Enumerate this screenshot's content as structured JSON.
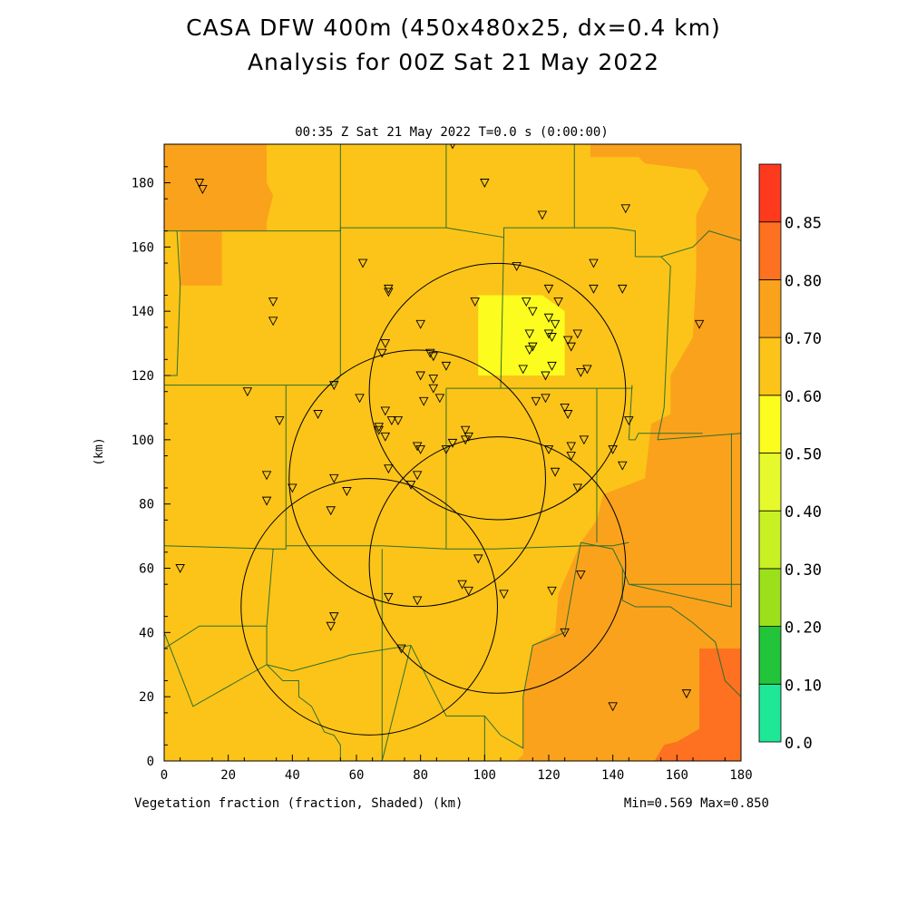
{
  "header": {
    "title_line1": "CASA DFW 400m (450x480x25, dx=0.4 km)",
    "title_line2": "Analysis for 00Z Sat 21 May 2022"
  },
  "chart_data": {
    "type": "heatmap",
    "subtitle": "00:35 Z Sat 21 May 2022    T=0.0 s (0:00:00)",
    "xlabel": "Vegetation fraction (fraction, Shaded)  (km)",
    "ylabel": "(km)",
    "stats": "Min=0.569 Max=0.850",
    "xlim": [
      0,
      180
    ],
    "ylim": [
      0,
      192
    ],
    "x_ticks": [
      0,
      20,
      40,
      60,
      80,
      100,
      120,
      140,
      160,
      180
    ],
    "y_ticks": [
      0,
      20,
      40,
      60,
      80,
      100,
      120,
      140,
      160,
      180
    ],
    "colorbar": {
      "levels": [
        0.0,
        0.1,
        0.2,
        0.3,
        0.4,
        0.5,
        0.6,
        0.7,
        0.8,
        0.85
      ],
      "labels": [
        "0.0",
        "0.10",
        "0.20",
        "0.30",
        "0.40",
        "0.50",
        "0.60",
        "0.70",
        "0.80",
        "0.85"
      ],
      "colors": [
        "#1ee896",
        "#22c43a",
        "#9ce01c",
        "#c8f023",
        "#e6f92c",
        "#fcfc1e",
        "#fcc418",
        "#fba21c",
        "#fd7120",
        "#fd3a1e"
      ]
    },
    "regions": [
      {
        "value": 0.65,
        "polygon": [
          [
            0,
            0
          ],
          [
            180,
            0
          ],
          [
            180,
            192
          ],
          [
            0,
            192
          ]
        ]
      },
      {
        "value": 0.75,
        "polygon": [
          [
            0,
            192
          ],
          [
            32,
            192
          ],
          [
            32,
            180
          ],
          [
            34,
            176
          ],
          [
            32,
            168
          ],
          [
            32,
            165
          ],
          [
            18,
            165
          ],
          [
            18,
            148
          ],
          [
            5,
            148
          ],
          [
            5,
            165
          ],
          [
            0,
            165
          ]
        ]
      },
      {
        "value": 0.75,
        "polygon": [
          [
            133,
            192
          ],
          [
            180,
            192
          ],
          [
            180,
            0
          ],
          [
            110,
            0
          ],
          [
            112,
            2
          ],
          [
            112,
            20
          ],
          [
            115,
            36
          ],
          [
            122,
            40
          ],
          [
            123,
            52
          ],
          [
            130,
            68
          ],
          [
            135,
            75
          ],
          [
            137,
            83
          ],
          [
            150,
            88
          ],
          [
            152,
            105
          ],
          [
            158,
            108
          ],
          [
            158,
            120
          ],
          [
            165,
            132
          ],
          [
            166,
            152
          ],
          [
            166,
            170
          ],
          [
            170,
            178
          ],
          [
            166,
            184
          ],
          [
            150,
            186
          ],
          [
            148,
            188
          ],
          [
            133,
            188
          ]
        ]
      },
      {
        "value": 0.82,
        "polygon": [
          [
            153,
            0
          ],
          [
            180,
            0
          ],
          [
            180,
            35
          ],
          [
            167,
            35
          ],
          [
            167,
            10
          ],
          [
            160,
            6
          ],
          [
            156,
            5
          ]
        ]
      },
      {
        "value": 0.57,
        "polygon": [
          [
            98,
            145
          ],
          [
            118,
            145
          ],
          [
            125,
            140
          ],
          [
            125,
            120
          ],
          [
            98,
            120
          ]
        ]
      }
    ],
    "stations_xy": [
      [
        11,
        180
      ],
      [
        12,
        178
      ],
      [
        90,
        192
      ],
      [
        100,
        180
      ],
      [
        118,
        170
      ],
      [
        144,
        172
      ],
      [
        62,
        155
      ],
      [
        70,
        147
      ],
      [
        70,
        146
      ],
      [
        34,
        143
      ],
      [
        34,
        137
      ],
      [
        110,
        154
      ],
      [
        134,
        155
      ],
      [
        120,
        147
      ],
      [
        134,
        147
      ],
      [
        143,
        147
      ],
      [
        97,
        143
      ],
      [
        113,
        143
      ],
      [
        123,
        143
      ],
      [
        115,
        140
      ],
      [
        120,
        138
      ],
      [
        114,
        133
      ],
      [
        122,
        136
      ],
      [
        120,
        133
      ],
      [
        121,
        132
      ],
      [
        115,
        129
      ],
      [
        114,
        128
      ],
      [
        126,
        131
      ],
      [
        129,
        133
      ],
      [
        127,
        129
      ],
      [
        80,
        136
      ],
      [
        69,
        130
      ],
      [
        68,
        127
      ],
      [
        83,
        127
      ],
      [
        84,
        126
      ],
      [
        80,
        120
      ],
      [
        88,
        123
      ],
      [
        112,
        122
      ],
      [
        121,
        123
      ],
      [
        119,
        120
      ],
      [
        132,
        122
      ],
      [
        130,
        121
      ],
      [
        26,
        115
      ],
      [
        53,
        117
      ],
      [
        61,
        113
      ],
      [
        84,
        119
      ],
      [
        84,
        116
      ],
      [
        81,
        112
      ],
      [
        86,
        113
      ],
      [
        116,
        112
      ],
      [
        119,
        113
      ],
      [
        125,
        110
      ],
      [
        126,
        108
      ],
      [
        145,
        106
      ],
      [
        36,
        106
      ],
      [
        48,
        108
      ],
      [
        69,
        109
      ],
      [
        67,
        104
      ],
      [
        67,
        103
      ],
      [
        73,
        106
      ],
      [
        71,
        106
      ],
      [
        69,
        101
      ],
      [
        79,
        98
      ],
      [
        80,
        97
      ],
      [
        88,
        97
      ],
      [
        90,
        99
      ],
      [
        94,
        103
      ],
      [
        95,
        101
      ],
      [
        94,
        100
      ],
      [
        120,
        97
      ],
      [
        127,
        98
      ],
      [
        131,
        100
      ],
      [
        140,
        97
      ],
      [
        127,
        95
      ],
      [
        143,
        92
      ],
      [
        70,
        91
      ],
      [
        32,
        89
      ],
      [
        79,
        89
      ],
      [
        122,
        90
      ],
      [
        53,
        88
      ],
      [
        57,
        84
      ],
      [
        32,
        81
      ],
      [
        40,
        85
      ],
      [
        77,
        86
      ],
      [
        129,
        85
      ],
      [
        52,
        78
      ],
      [
        5,
        60
      ],
      [
        98,
        63
      ],
      [
        130,
        58
      ],
      [
        93,
        55
      ],
      [
        95,
        53
      ],
      [
        106,
        52
      ],
      [
        121,
        53
      ],
      [
        70,
        51
      ],
      [
        79,
        50
      ],
      [
        53,
        45
      ],
      [
        52,
        42
      ],
      [
        125,
        40
      ],
      [
        74,
        35
      ],
      [
        140,
        17
      ],
      [
        163,
        21
      ],
      [
        167,
        136
      ]
    ],
    "range_rings": [
      {
        "cx": 64,
        "cy": 48,
        "r": 40
      },
      {
        "cx": 79,
        "cy": 88,
        "r": 40
      },
      {
        "cx": 104,
        "cy": 115,
        "r": 40
      },
      {
        "cx": 104,
        "cy": 61,
        "r": 40
      }
    ],
    "county_lines": [
      [
        [
          0,
          165
        ],
        [
          55,
          165
        ],
        [
          55,
          192
        ]
      ],
      [
        [
          55,
          166
        ],
        [
          88,
          166
        ],
        [
          88,
          192
        ]
      ],
      [
        [
          55,
          166
        ],
        [
          55,
          120
        ]
      ],
      [
        [
          4,
          165
        ],
        [
          5,
          148
        ],
        [
          4,
          120
        ],
        [
          0,
          120
        ]
      ],
      [
        [
          0,
          117
        ],
        [
          38,
          117
        ],
        [
          53,
          117
        ],
        [
          55,
          120
        ]
      ],
      [
        [
          88,
          166
        ],
        [
          106,
          163
        ],
        [
          106,
          166
        ],
        [
          128,
          166
        ],
        [
          128,
          192
        ]
      ],
      [
        [
          128,
          166
        ],
        [
          140,
          166
        ],
        [
          147,
          165
        ],
        [
          147,
          157
        ]
      ],
      [
        [
          106,
          163
        ],
        [
          105,
          116
        ],
        [
          135,
          116
        ],
        [
          146,
          116
        ],
        [
          146,
          117
        ],
        [
          145,
          100
        ]
      ],
      [
        [
          145,
          100
        ],
        [
          146,
          100
        ],
        [
          147,
          100
        ],
        [
          148,
          102
        ],
        [
          168,
          102
        ]
      ],
      [
        [
          147,
          157
        ],
        [
          155,
          157
        ],
        [
          165,
          160
        ],
        [
          170,
          165
        ],
        [
          180,
          162
        ]
      ],
      [
        [
          155,
          157
        ],
        [
          158,
          154
        ],
        [
          156,
          110
        ],
        [
          154,
          100
        ],
        [
          180,
          102
        ]
      ],
      [
        [
          38,
          117
        ],
        [
          38,
          67
        ],
        [
          38,
          66
        ],
        [
          34,
          66
        ]
      ],
      [
        [
          0,
          67
        ],
        [
          34,
          66
        ],
        [
          32,
          42
        ],
        [
          11,
          42
        ],
        [
          0,
          35
        ]
      ],
      [
        [
          38,
          67
        ],
        [
          50,
          67
        ],
        [
          68,
          67
        ],
        [
          88,
          66
        ],
        [
          103,
          66
        ],
        [
          131,
          67
        ],
        [
          140,
          67
        ],
        [
          145,
          68
        ]
      ],
      [
        [
          88,
          116
        ],
        [
          88,
          66
        ]
      ],
      [
        [
          88,
          116
        ],
        [
          105,
          116
        ]
      ],
      [
        [
          135,
          116
        ],
        [
          135,
          68
        ]
      ],
      [
        [
          32,
          42
        ],
        [
          32,
          30
        ],
        [
          9,
          17
        ],
        [
          0,
          40
        ]
      ],
      [
        [
          32,
          30
        ],
        [
          37,
          25
        ],
        [
          42,
          25
        ],
        [
          42,
          20
        ],
        [
          46,
          17
        ],
        [
          50,
          9
        ],
        [
          53,
          8
        ],
        [
          55,
          5
        ],
        [
          55,
          0
        ]
      ],
      [
        [
          32,
          30
        ],
        [
          40,
          28
        ],
        [
          55,
          32
        ],
        [
          58,
          33
        ],
        [
          77,
          36
        ],
        [
          88,
          14
        ],
        [
          100,
          14
        ],
        [
          100,
          0
        ]
      ],
      [
        [
          77,
          36
        ],
        [
          68,
          0
        ]
      ],
      [
        [
          100,
          14
        ],
        [
          105,
          8
        ],
        [
          112,
          4
        ],
        [
          112,
          20
        ],
        [
          115,
          36
        ],
        [
          125,
          40
        ],
        [
          130,
          68
        ]
      ],
      [
        [
          68,
          66
        ],
        [
          68,
          0
        ]
      ],
      [
        [
          130,
          68
        ],
        [
          140,
          66
        ],
        [
          143,
          60
        ],
        [
          143,
          50
        ],
        [
          147,
          48
        ],
        [
          158,
          48
        ],
        [
          165,
          43
        ],
        [
          172,
          37
        ],
        [
          175,
          25
        ],
        [
          180,
          20
        ]
      ],
      [
        [
          143,
          60
        ],
        [
          145,
          55
        ],
        [
          177,
          48
        ],
        [
          177,
          102
        ]
      ],
      [
        [
          145,
          55
        ],
        [
          180,
          55
        ]
      ]
    ]
  }
}
